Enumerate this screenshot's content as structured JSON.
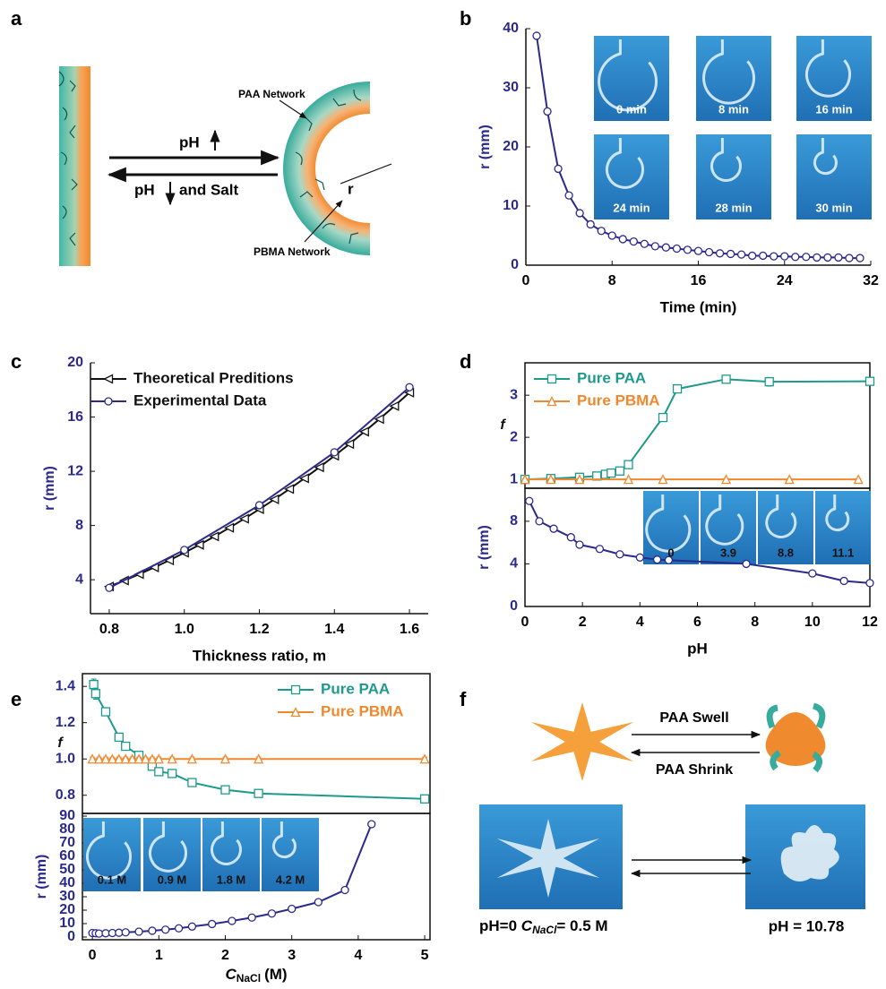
{
  "panel_labels": [
    "a",
    "b",
    "c",
    "d",
    "e",
    "f"
  ],
  "diagram_a": {
    "ph_up": "pH",
    "ph_down": "pH",
    "and_salt": "and Salt",
    "paa_network": "PAA Network",
    "pbma_network": "PBMA Network",
    "radius": "r"
  },
  "diagram_f": {
    "swell": "PAA Swell",
    "shrink": "PAA Shrink",
    "left_caption": {
      "ph": "pH=0",
      "c": "C",
      "sub": "NaCl",
      "rest": "= 0.5 M"
    },
    "right_caption": "pH = 10.78"
  },
  "chart_data": [
    {
      "type": "line",
      "x_label": "Time (min)",
      "y_label": "r (mm)",
      "xlim": [
        0,
        32
      ],
      "ylim": [
        0,
        40
      ],
      "xticks": [
        0,
        8,
        16,
        24,
        32
      ],
      "yticks": [
        0,
        10,
        20,
        30,
        40
      ],
      "series": [
        {
          "color": "#2b2a8c",
          "marker": "circle",
          "x": [
            1,
            2,
            3,
            4,
            5,
            6,
            7,
            8,
            9,
            10,
            11,
            12,
            13,
            14,
            15,
            16,
            17,
            18,
            19,
            20,
            21,
            22,
            23,
            24,
            25,
            26,
            27,
            28,
            29,
            30,
            31
          ],
          "values": [
            38.8,
            26,
            16.3,
            11.8,
            8.8,
            6.9,
            5.8,
            5,
            4.4,
            4,
            3.6,
            3.2,
            3.0,
            2.8,
            2.6,
            2.4,
            2.2,
            2.0,
            1.9,
            1.8,
            1.6,
            1.6,
            1.5,
            1.5,
            1.4,
            1.4,
            1.3,
            1.3,
            1.3,
            1.2,
            1.2
          ]
        }
      ],
      "inset_labels": [
        "0 min",
        "8 min",
        "16 min",
        "24 min",
        "28 min",
        "30 min"
      ]
    },
    {
      "type": "line",
      "x_label": "Thickness ratio, m",
      "y_label": "r (mm)",
      "xlim": [
        0.75,
        1.65
      ],
      "ylim": [
        1.5,
        20
      ],
      "xticks": [
        0.8,
        {
          "value": 1,
          "label": "1.0"
        },
        1.2,
        1.4,
        1.6
      ],
      "yticks": [
        4,
        8,
        12,
        16,
        20
      ],
      "legend": "upper left",
      "series": [
        {
          "name": "Theoretical Preditions",
          "color": "#111111",
          "marker": "triangle-left",
          "x": [
            0.8,
            0.84,
            0.88,
            0.92,
            0.96,
            1.0,
            1.04,
            1.08,
            1.12,
            1.16,
            1.2,
            1.24,
            1.28,
            1.32,
            1.36,
            1.4,
            1.44,
            1.48,
            1.52,
            1.56,
            1.6
          ],
          "values": [
            3.5,
            3.94,
            4.41,
            4.91,
            5.43,
            5.99,
            6.57,
            7.19,
            7.83,
            8.5,
            9.2,
            9.93,
            10.69,
            11.48,
            12.29,
            13.14,
            14.01,
            14.92,
            15.85,
            16.81,
            17.8
          ]
        },
        {
          "name": "Experimental Data",
          "color": "#2b2a8c",
          "marker": "circle",
          "x": [
            0.8,
            1.0,
            1.2,
            1.4,
            1.6
          ],
          "values": [
            3.4,
            6.2,
            9.5,
            13.4,
            18.2
          ]
        }
      ]
    },
    {
      "type": "line",
      "y_label": "f",
      "xlim": [
        0,
        12
      ],
      "ylim": [
        0.79,
        3.77
      ],
      "yticks": [
        1,
        2,
        3
      ],
      "box": true,
      "legend": "upper left",
      "series": [
        {
          "name": "Pure PAA",
          "color": "#1e9a8c",
          "marker": "square",
          "x": [
            0,
            0.9,
            1.9,
            2.5,
            2.8,
            3.0,
            3.3,
            3.6,
            4.8,
            5.3,
            7.0,
            8.5,
            12.0
          ],
          "values": [
            1.0,
            1.02,
            1.05,
            1.08,
            1.12,
            1.15,
            1.2,
            1.35,
            2.47,
            3.15,
            3.38,
            3.32,
            3.33
          ],
          "errors": [
            0.02,
            0.02,
            0.02,
            0.03,
            0.03,
            0.03,
            0.03,
            0.03,
            0.05,
            0.04,
            0.08,
            0.1,
            0.06
          ]
        },
        {
          "name": "Pure PBMA",
          "color": "#f0882e",
          "marker": "triangle",
          "x": [
            0,
            0.9,
            1.9,
            3.6,
            4.8,
            7.0,
            9.2,
            11.6
          ],
          "values": [
            1.0,
            1.0,
            1.0,
            1.0,
            1.0,
            1.0,
            1.0,
            1.0
          ],
          "errors": [
            0.02,
            0.02,
            0.02,
            0.02,
            0.02,
            0.02,
            0.02,
            0.02
          ]
        }
      ]
    },
    {
      "type": "line",
      "x_label": "pH",
      "y_label": "r (mm)",
      "xlim": [
        0,
        12
      ],
      "ylim": [
        0,
        11.1
      ],
      "xticks": [
        0,
        2,
        4,
        6,
        8,
        10,
        12
      ],
      "yticks": [
        0,
        4,
        8
      ],
      "box": true,
      "series": [
        {
          "color": "#2b2a8c",
          "marker": "circle",
          "x": [
            0.15,
            0.5,
            1.0,
            1.6,
            1.9,
            2.6,
            3.3,
            4.0,
            4.6,
            5.0,
            7.7,
            10.0,
            11.1,
            12.0
          ],
          "values": [
            9.9,
            8.0,
            7.3,
            6.5,
            5.8,
            5.4,
            4.9,
            4.6,
            4.4,
            4.35,
            4.0,
            3.1,
            2.4,
            2.2
          ]
        }
      ],
      "inset_labels": [
        "0",
        "3.9",
        "8.8",
        "11.1"
      ]
    },
    {
      "type": "line",
      "y_label": "f",
      "xlim": [
        -0.15,
        5.08
      ],
      "ylim": [
        0.7,
        1.47
      ],
      "yticks": [
        0.8,
        {
          "value": 1,
          "label": "1.0"
        },
        1.2,
        1.4
      ],
      "box": true,
      "legend": "upper right",
      "series": [
        {
          "name": "Pure PAA",
          "color": "#1e9a8c",
          "marker": "square",
          "x": [
            0.02,
            0.05,
            0.2,
            0.4,
            0.5,
            0.7,
            0.9,
            1.0,
            1.2,
            1.5,
            2.0,
            2.5,
            5.0
          ],
          "values": [
            1.41,
            1.36,
            1.26,
            1.12,
            1.07,
            1.02,
            0.96,
            0.93,
            0.92,
            0.87,
            0.83,
            0.81,
            0.78
          ],
          "errors": [
            0.03,
            0.03,
            0.02,
            0.01,
            0.01,
            0.02,
            0.01,
            0.01,
            0.01,
            0.01,
            0.01,
            0.01,
            0.02
          ]
        },
        {
          "name": "Pure PBMA",
          "color": "#f0882e",
          "marker": "triangle",
          "x": [
            0,
            0.1,
            0.2,
            0.3,
            0.4,
            0.5,
            0.6,
            0.7,
            0.8,
            0.9,
            1.0,
            1.2,
            1.5,
            2.0,
            2.5,
            5.0
          ],
          "values": [
            1.0,
            1.0,
            1.0,
            1.0,
            1.0,
            1.0,
            1.0,
            1.0,
            1.0,
            1.0,
            1.0,
            1.0,
            1.0,
            1.0,
            1.0,
            1.0
          ],
          "errors": [
            0.01,
            0.01,
            0.01,
            0.01,
            0.01,
            0.01,
            0.01,
            0.01,
            0.01,
            0.01,
            0.01,
            0.01,
            0.01,
            0.01,
            0.01,
            0.01
          ]
        }
      ]
    },
    {
      "type": "line",
      "x_label": {
        "main": "C",
        "sub": "NaCl",
        "rest": "(M)"
      },
      "y_label": "r (mm)",
      "xlim": [
        -0.15,
        5.08
      ],
      "ylim": [
        -2,
        92
      ],
      "xticks": [
        0,
        1,
        2,
        3,
        4,
        5
      ],
      "yticks": [
        0,
        10,
        20,
        30,
        40,
        50,
        60,
        70,
        80,
        90
      ],
      "box": true,
      "series": [
        {
          "color": "#2b2a8c",
          "marker": "circle",
          "x": [
            0,
            0.05,
            0.1,
            0.2,
            0.3,
            0.4,
            0.5,
            0.7,
            0.9,
            1.1,
            1.3,
            1.5,
            1.8,
            2.1,
            2.4,
            2.7,
            3.0,
            3.4,
            3.8,
            4.2
          ],
          "values": [
            3,
            2.8,
            2.6,
            2.8,
            3,
            3.2,
            3.5,
            4,
            4.7,
            5.5,
            6.5,
            7.8,
            9.7,
            12,
            14.5,
            17.5,
            21,
            26,
            35,
            84
          ]
        }
      ],
      "inset_labels": [
        "0.1 M",
        "0.9 M",
        "1.8 M",
        "4.2 M"
      ]
    }
  ]
}
